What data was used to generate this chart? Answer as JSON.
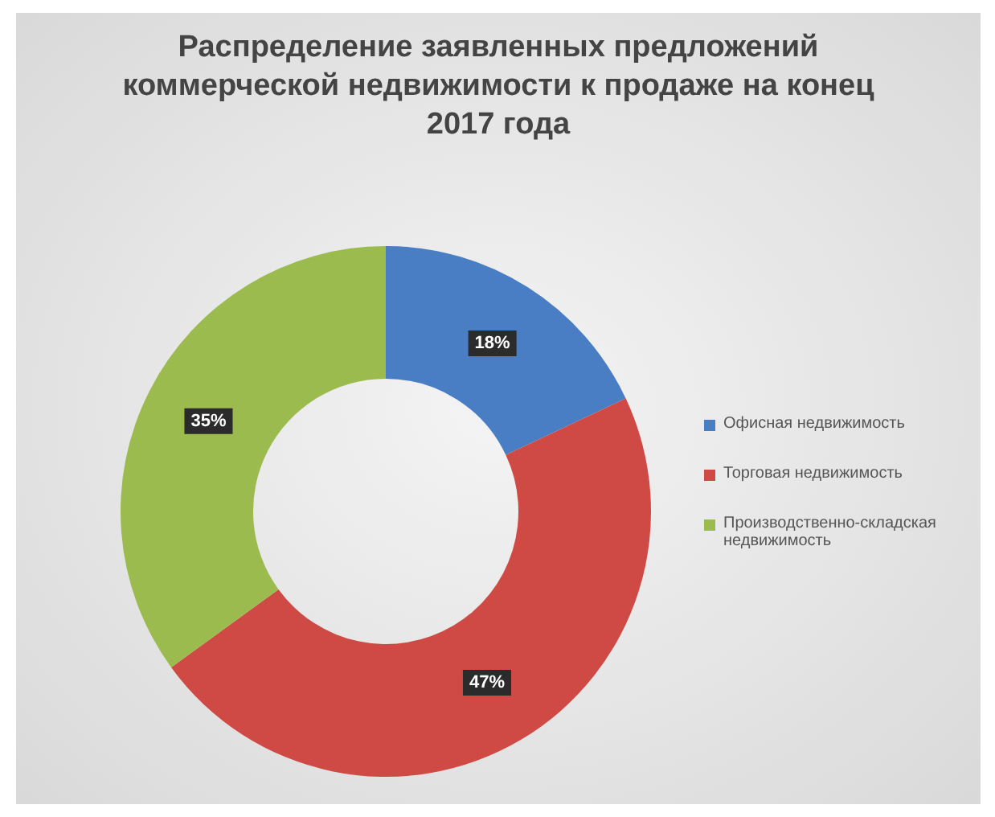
{
  "chart_data": {
    "type": "donut",
    "title": "Распределение заявленных предложений коммерческой недвижимости к продаже на конец 2017 года",
    "categories": [
      "Офисная недвижимость",
      "Торговая недвижимость",
      "Производственно-складская недвижимость"
    ],
    "values": [
      18,
      47,
      35
    ],
    "colors": [
      "#4a7ec4",
      "#cf4a45",
      "#9bbb4f"
    ],
    "value_labels": [
      "18%",
      "47%",
      "35%"
    ],
    "legend": "right"
  }
}
